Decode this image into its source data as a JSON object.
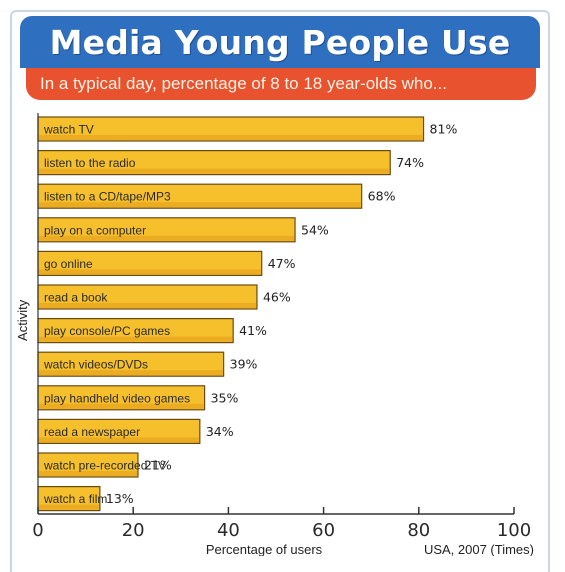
{
  "header": {
    "title": "Media Young People Use",
    "subtitle": "In a typical day, percentage of 8 to 18 year-olds who..."
  },
  "colors": {
    "title_banner": "#2f6fc0",
    "subtitle_banner": "#e8522e",
    "bar_fill": "#f6c02c",
    "bar_stroke": "#6b4a10"
  },
  "source": "USA, 2007 (Times)",
  "chart_data": {
    "type": "bar",
    "orientation": "horizontal",
    "title": "Media Young People Use",
    "subtitle": "In a typical day, percentage of 8 to 18 year-olds who...",
    "xlabel": "Percentage of users",
    "ylabel": "Activity",
    "xlim": [
      0,
      100
    ],
    "xticks": [
      0,
      20,
      40,
      60,
      80,
      100
    ],
    "grid": false,
    "categories": [
      "watch TV",
      "listen to the radio",
      "listen to a CD/tape/MP3",
      "play on a computer",
      "go online",
      "read a book",
      "play console/PC games",
      "watch videos/DVDs",
      "play handheld video games",
      "read a newspaper",
      "watch pre-recorded TV",
      "watch a film"
    ],
    "values": [
      81,
      74,
      68,
      54,
      47,
      46,
      41,
      39,
      35,
      34,
      21,
      13
    ],
    "value_labels": [
      "81%",
      "74%",
      "68%",
      "54%",
      "47%",
      "46%",
      "41%",
      "39%",
      "35%",
      "34%",
      "21%",
      "13%"
    ]
  }
}
